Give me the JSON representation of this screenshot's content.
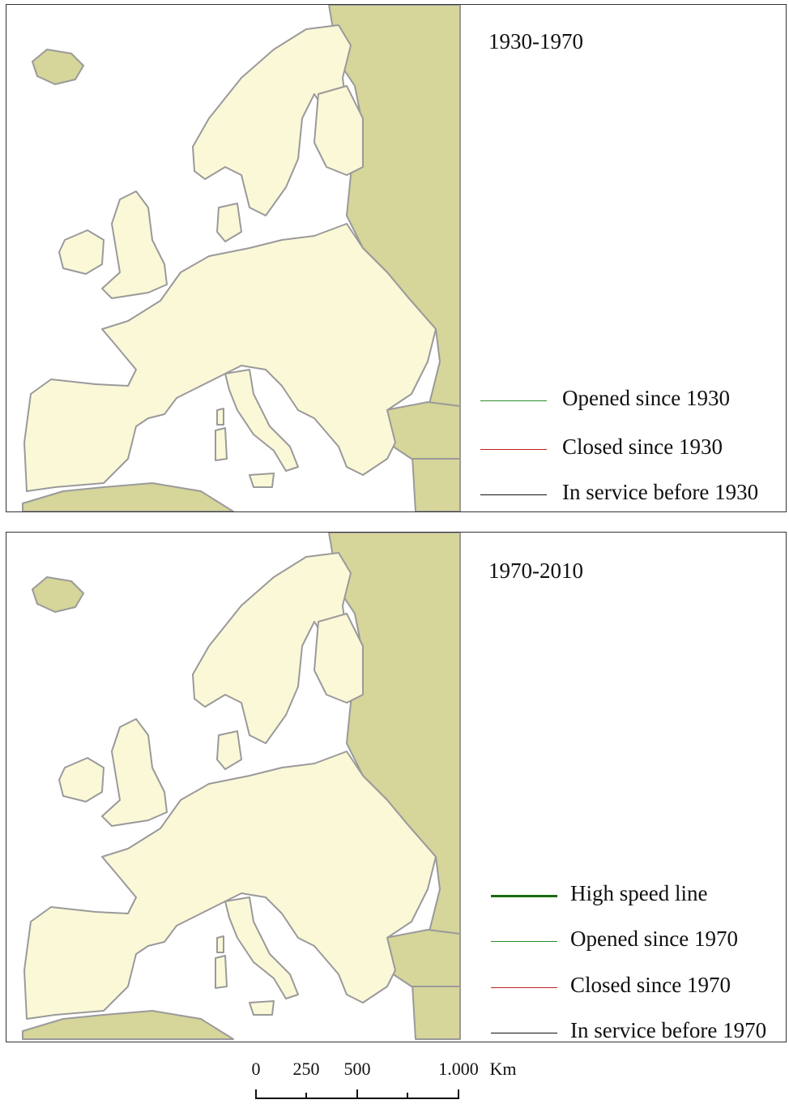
{
  "panels": [
    {
      "period": "1930-1970",
      "legend": [
        {
          "label": "Opened since 1930",
          "color": "#2e8b2e",
          "weight": "thin"
        },
        {
          "label": "Closed since 1930",
          "color": "#c21f1f",
          "weight": "thin"
        },
        {
          "label": "In service before 1930",
          "color": "#111111",
          "weight": "thin"
        }
      ]
    },
    {
      "period": "1970-2010",
      "legend": [
        {
          "label": "High speed line",
          "color": "#1a6b12",
          "weight": "thick"
        },
        {
          "label": "Opened since 1970",
          "color": "#2e8b2e",
          "weight": "thin"
        },
        {
          "label": "Closed since 1970",
          "color": "#c21f1f",
          "weight": "thin"
        },
        {
          "label": "In service before 1970",
          "color": "#111111",
          "weight": "thin"
        }
      ]
    }
  ],
  "scale": {
    "ticks": [
      "0",
      "250",
      "500",
      "1.000"
    ],
    "unit": "Km"
  },
  "colors": {
    "land": "#fbf8d8",
    "outer_land": "#d6d59a",
    "coast": "#9a9a9a",
    "sea": "#ffffff"
  }
}
